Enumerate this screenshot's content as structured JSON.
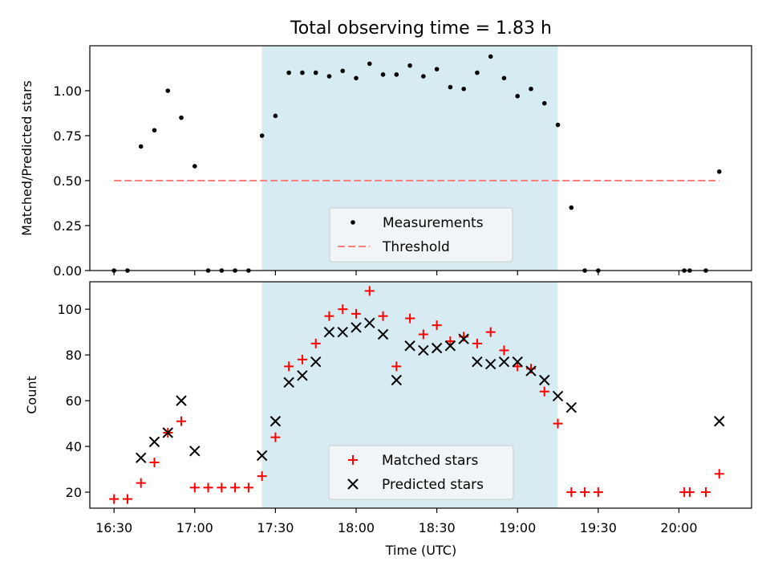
{
  "colors": {
    "measure": "#000000",
    "threshold": "#ff7f7f",
    "matched": "#ff0000",
    "predicted": "#000000",
    "span": "#add8e6"
  },
  "chart_data": [
    {
      "type": "scatter",
      "title": "Total observing time = 1.83 h",
      "ylabel": "Matched/Predicted stars",
      "xlabel": "",
      "ylim": [
        0,
        1.25
      ],
      "xlim": [
        "16:21",
        "20:27"
      ],
      "yticks": [
        "0.00",
        "0.25",
        "0.50",
        "0.75",
        "1.00"
      ],
      "shaded_span": [
        "17:25",
        "19:15"
      ],
      "legend": {
        "placement": "lower center",
        "entries": [
          "Measurements",
          "Threshold"
        ]
      },
      "threshold": {
        "name": "Threshold",
        "y": 0.5,
        "x": [
          "16:30",
          "20:15"
        ],
        "style": "dashed"
      },
      "series": [
        {
          "name": "Measurements",
          "marker": "dot",
          "points": [
            [
              "16:30",
              0.0
            ],
            [
              "16:35",
              0.0
            ],
            [
              "16:40",
              0.69
            ],
            [
              "16:45",
              0.78
            ],
            [
              "16:50",
              1.0
            ],
            [
              "16:55",
              0.85
            ],
            [
              "17:00",
              0.58
            ],
            [
              "17:05",
              0.0
            ],
            [
              "17:10",
              0.0
            ],
            [
              "17:15",
              0.0
            ],
            [
              "17:20",
              0.0
            ],
            [
              "17:25",
              0.75
            ],
            [
              "17:30",
              0.86
            ],
            [
              "17:35",
              1.1
            ],
            [
              "17:40",
              1.1
            ],
            [
              "17:45",
              1.1
            ],
            [
              "17:50",
              1.08
            ],
            [
              "17:55",
              1.11
            ],
            [
              "18:00",
              1.07
            ],
            [
              "18:05",
              1.15
            ],
            [
              "18:10",
              1.09
            ],
            [
              "18:15",
              1.09
            ],
            [
              "18:20",
              1.14
            ],
            [
              "18:25",
              1.08
            ],
            [
              "18:30",
              1.12
            ],
            [
              "18:35",
              1.02
            ],
            [
              "18:40",
              1.01
            ],
            [
              "18:45",
              1.1
            ],
            [
              "18:50",
              1.19
            ],
            [
              "18:55",
              1.07
            ],
            [
              "19:00",
              0.97
            ],
            [
              "19:05",
              1.01
            ],
            [
              "19:10",
              0.93
            ],
            [
              "19:15",
              0.81
            ],
            [
              "19:20",
              0.35
            ],
            [
              "19:25",
              0.0
            ],
            [
              "19:30",
              0.0
            ],
            [
              "20:02",
              0.0
            ],
            [
              "20:04",
              0.0
            ],
            [
              "20:10",
              0.0
            ],
            [
              "20:15",
              0.55
            ]
          ]
        }
      ]
    },
    {
      "type": "scatter",
      "title": "",
      "ylabel": "Count",
      "xlabel": "Time (UTC)",
      "ylim": [
        13,
        112
      ],
      "xlim": [
        "16:21",
        "20:27"
      ],
      "yticks": [
        "20",
        "40",
        "60",
        "80",
        "100"
      ],
      "xticks": [
        "16:30",
        "17:00",
        "17:30",
        "18:00",
        "18:30",
        "19:00",
        "19:30",
        "20:00"
      ],
      "shaded_span": [
        "17:25",
        "19:15"
      ],
      "legend": {
        "placement": "lower center",
        "entries": [
          "Matched stars",
          "Predicted stars"
        ]
      },
      "series": [
        {
          "name": "Matched stars",
          "marker": "plus",
          "points": [
            [
              "16:30",
              17
            ],
            [
              "16:35",
              17
            ],
            [
              "16:40",
              24
            ],
            [
              "16:45",
              33
            ],
            [
              "16:50",
              46
            ],
            [
              "16:55",
              51
            ],
            [
              "17:00",
              22
            ],
            [
              "17:05",
              22
            ],
            [
              "17:10",
              22
            ],
            [
              "17:15",
              22
            ],
            [
              "17:20",
              22
            ],
            [
              "17:25",
              27
            ],
            [
              "17:30",
              44
            ],
            [
              "17:35",
              75
            ],
            [
              "17:40",
              78
            ],
            [
              "17:45",
              85
            ],
            [
              "17:50",
              97
            ],
            [
              "17:55",
              100
            ],
            [
              "18:00",
              98
            ],
            [
              "18:05",
              108
            ],
            [
              "18:10",
              97
            ],
            [
              "18:15",
              75
            ],
            [
              "18:20",
              96
            ],
            [
              "18:25",
              89
            ],
            [
              "18:30",
              93
            ],
            [
              "18:35",
              86
            ],
            [
              "18:40",
              88
            ],
            [
              "18:45",
              85
            ],
            [
              "18:50",
              90
            ],
            [
              "18:55",
              82
            ],
            [
              "19:00",
              75
            ],
            [
              "19:05",
              74
            ],
            [
              "19:10",
              64
            ],
            [
              "19:15",
              50
            ],
            [
              "19:20",
              20
            ],
            [
              "19:25",
              20
            ],
            [
              "19:30",
              20
            ],
            [
              "20:02",
              20
            ],
            [
              "20:04",
              20
            ],
            [
              "20:10",
              20
            ],
            [
              "20:15",
              28
            ]
          ]
        },
        {
          "name": "Predicted stars",
          "marker": "x",
          "points": [
            [
              "16:40",
              35
            ],
            [
              "16:45",
              42
            ],
            [
              "16:50",
              46
            ],
            [
              "16:55",
              60
            ],
            [
              "17:00",
              38
            ],
            [
              "17:25",
              36
            ],
            [
              "17:30",
              51
            ],
            [
              "17:35",
              68
            ],
            [
              "17:40",
              71
            ],
            [
              "17:45",
              77
            ],
            [
              "17:50",
              90
            ],
            [
              "17:55",
              90
            ],
            [
              "18:00",
              92
            ],
            [
              "18:05",
              94
            ],
            [
              "18:10",
              89
            ],
            [
              "18:15",
              69
            ],
            [
              "18:20",
              84
            ],
            [
              "18:25",
              82
            ],
            [
              "18:30",
              83
            ],
            [
              "18:35",
              84
            ],
            [
              "18:40",
              87
            ],
            [
              "18:45",
              77
            ],
            [
              "18:50",
              76
            ],
            [
              "18:55",
              77
            ],
            [
              "19:00",
              77
            ],
            [
              "19:05",
              73
            ],
            [
              "19:10",
              69
            ],
            [
              "19:15",
              62
            ],
            [
              "19:20",
              57
            ],
            [
              "20:15",
              51
            ]
          ]
        }
      ]
    }
  ]
}
